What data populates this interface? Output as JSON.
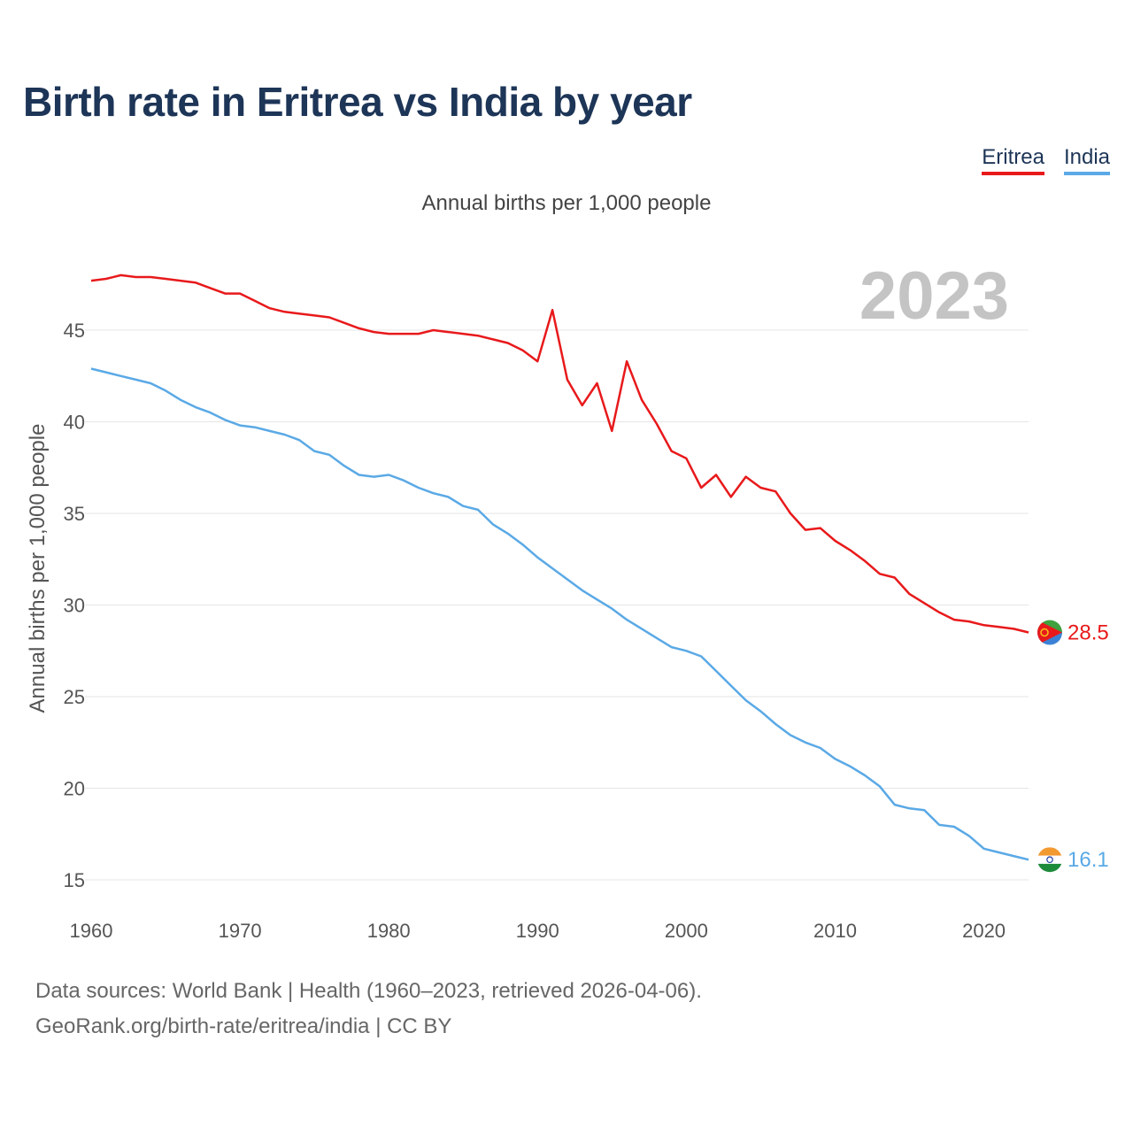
{
  "chart_data": {
    "type": "line",
    "title": "Birth rate in Eritrea vs India by year",
    "subtitle": "Annual births per 1,000 people",
    "ylabel": "Annual births per 1,000 people",
    "xlabel": "",
    "year_label": "2023",
    "xlim": [
      1960,
      2023
    ],
    "ylim": [
      14,
      48
    ],
    "x_ticks": [
      1960,
      1970,
      1980,
      1990,
      2000,
      2010,
      2020
    ],
    "y_ticks": [
      15,
      20,
      25,
      30,
      35,
      40,
      45
    ],
    "grid": true,
    "legend": "top-right",
    "x": [
      1960,
      1961,
      1962,
      1963,
      1964,
      1965,
      1966,
      1967,
      1968,
      1969,
      1970,
      1971,
      1972,
      1973,
      1974,
      1975,
      1976,
      1977,
      1978,
      1979,
      1980,
      1981,
      1982,
      1983,
      1984,
      1985,
      1986,
      1987,
      1988,
      1989,
      1990,
      1991,
      1992,
      1993,
      1994,
      1995,
      1996,
      1997,
      1998,
      1999,
      2000,
      2001,
      2002,
      2003,
      2004,
      2005,
      2006,
      2007,
      2008,
      2009,
      2010,
      2011,
      2012,
      2013,
      2014,
      2015,
      2016,
      2017,
      2018,
      2019,
      2020,
      2021,
      2022,
      2023
    ],
    "series": [
      {
        "name": "Eritrea",
        "color": "#e8191b",
        "end_label": "28.5",
        "flag": "eritrea-flag",
        "values": [
          47.7,
          47.8,
          48.0,
          47.9,
          47.9,
          47.8,
          47.7,
          47.6,
          47.3,
          47.0,
          47.0,
          46.6,
          46.2,
          46.0,
          45.9,
          45.8,
          45.7,
          45.4,
          45.1,
          44.9,
          44.8,
          44.8,
          44.8,
          45.0,
          44.9,
          44.8,
          44.7,
          44.5,
          44.3,
          43.9,
          43.3,
          46.1,
          42.3,
          40.9,
          42.1,
          39.5,
          43.3,
          41.2,
          39.9,
          38.4,
          38.0,
          36.4,
          37.1,
          35.9,
          37.0,
          36.4,
          36.2,
          35.0,
          34.1,
          34.2,
          33.5,
          33.0,
          32.4,
          31.7,
          31.5,
          30.6,
          30.1,
          29.6,
          29.2,
          29.1,
          28.9,
          28.8,
          28.7,
          28.5
        ]
      },
      {
        "name": "India",
        "color": "#5aa9e6",
        "end_label": "16.1",
        "flag": "india-flag",
        "values": [
          42.9,
          42.7,
          42.5,
          42.3,
          42.1,
          41.7,
          41.2,
          40.8,
          40.5,
          40.1,
          39.8,
          39.7,
          39.5,
          39.3,
          39.0,
          38.4,
          38.2,
          37.6,
          37.1,
          37.0,
          37.1,
          36.8,
          36.4,
          36.1,
          35.9,
          35.4,
          35.2,
          34.4,
          33.9,
          33.3,
          32.6,
          32.0,
          31.4,
          30.8,
          30.3,
          29.8,
          29.2,
          28.7,
          28.2,
          27.7,
          27.5,
          27.2,
          26.4,
          25.6,
          24.8,
          24.2,
          23.5,
          22.9,
          22.5,
          22.2,
          21.6,
          21.2,
          20.7,
          20.1,
          19.1,
          18.9,
          18.8,
          18.0,
          17.9,
          17.4,
          16.7,
          16.5,
          16.3,
          16.1
        ]
      }
    ]
  },
  "footer": {
    "source": "Data sources: World Bank | Health (1960–2023, retrieved 2026-04-06).",
    "credit": "GeoRank.org/birth-rate/eritrea/india | CC BY"
  }
}
